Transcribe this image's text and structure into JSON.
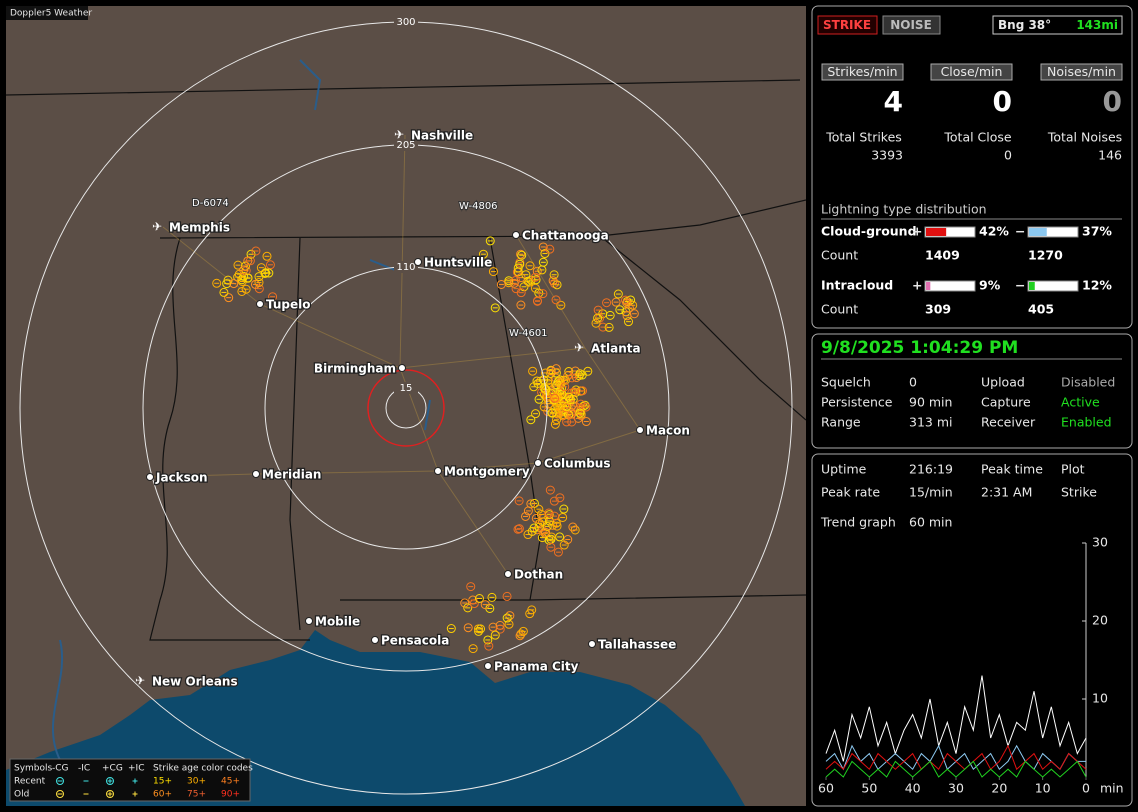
{
  "window_title": "Doppler5 Weather",
  "map": {
    "range_rings": [
      "300",
      "205",
      "110",
      "15"
    ],
    "cities": [
      "Nashville",
      "Memphis",
      "Chattanooga",
      "Huntsville",
      "Tupelo",
      "Atlanta",
      "Birmingham",
      "Macon",
      "Columbus",
      "Jackson",
      "Meridian",
      "Montgomery",
      "Dothan",
      "Mobile",
      "Pensacola",
      "Tallahassee",
      "Panama City",
      "New Orleans"
    ],
    "stations": [
      "D-6074",
      "W-4806",
      "W-4601"
    ]
  },
  "legend": {
    "headers": [
      "Symbols",
      "-CG",
      "-IC",
      "+CG",
      "+IC"
    ],
    "age_title": "Strike age color codes",
    "rows": [
      {
        "label": "Recent",
        "ages": [
          "15+",
          "30+",
          "45+"
        ]
      },
      {
        "label": "Old",
        "ages": [
          "60+",
          "75+",
          "90+"
        ]
      }
    ]
  },
  "strike": {
    "buttons": [
      "STRIKE",
      "NOISE"
    ],
    "bearing": "Bng 38°",
    "distance": "143mi",
    "rates": [
      {
        "label": "Strikes/min",
        "value": 4,
        "total_label": "Total Strikes",
        "total": 3393
      },
      {
        "label": "Close/min",
        "value": 0,
        "total_label": "Total Close",
        "total": 0
      },
      {
        "label": "Noises/min",
        "value": 0,
        "total_label": "Total Noises",
        "total": 146
      }
    ],
    "distribution": {
      "title": "Lightning type distribution",
      "count_label": "Count",
      "rows": [
        {
          "name": "Cloud-ground",
          "positive": {
            "sign": "+",
            "percent": 42,
            "percent_label": "42%",
            "count": 1409,
            "color": "#e01010"
          },
          "negative": {
            "sign": "−",
            "percent": 37,
            "percent_label": "37%",
            "count": 1270,
            "color": "#8cc8f0"
          }
        },
        {
          "name": "Intracloud",
          "positive": {
            "sign": "+",
            "percent": 9,
            "percent_label": "9%",
            "count": 309,
            "color": "#e070b0"
          },
          "negative": {
            "sign": "−",
            "percent": 12,
            "percent_label": "12%",
            "count": 405,
            "color": "#20d020"
          }
        }
      ]
    }
  },
  "status": {
    "datetime": "9/8/2025 1:04:29 PM",
    "settings": [
      [
        "Squelch",
        "0",
        "Upload",
        "Disabled"
      ],
      [
        "Persistence",
        "90 min",
        "Capture",
        "Active"
      ],
      [
        "Range",
        "313 mi",
        "Receiver",
        "Enabled"
      ]
    ]
  },
  "stats": {
    "rows": [
      [
        "Uptime",
        "216:19",
        "Peak time",
        "Plot"
      ],
      [
        "Peak rate",
        "15/min",
        "2:31 AM",
        "Strike"
      ]
    ],
    "trend_label": "Trend graph",
    "trend_window": "60 min",
    "chart_data": {
      "type": "line",
      "x_unit": "min",
      "x": [
        60,
        58,
        56,
        54,
        52,
        50,
        48,
        46,
        44,
        42,
        40,
        38,
        36,
        34,
        32,
        30,
        28,
        26,
        24,
        22,
        20,
        18,
        16,
        14,
        12,
        10,
        8,
        6,
        4,
        2,
        0
      ],
      "xlim": [
        60,
        0
      ],
      "xticks": [
        60,
        50,
        40,
        30,
        20,
        10,
        0
      ],
      "ylim": [
        0,
        30
      ],
      "yticks": [
        10,
        20,
        30
      ],
      "series": [
        {
          "color": "#ffffff",
          "values": [
            3,
            6,
            2,
            8,
            5,
            9,
            4,
            7,
            3,
            6,
            8,
            5,
            10,
            4,
            7,
            3,
            9,
            6,
            13,
            5,
            8,
            4,
            7,
            6,
            11,
            5,
            9,
            4,
            7,
            3,
            5
          ]
        },
        {
          "color": "#8cc8f0",
          "values": [
            2,
            3,
            1,
            4,
            2,
            3,
            1,
            2,
            3,
            2,
            1,
            3,
            2,
            4,
            1,
            2,
            3,
            1,
            2,
            3,
            1,
            2,
            4,
            2,
            1,
            3,
            2,
            1,
            3,
            2,
            2
          ]
        },
        {
          "color": "#e01010",
          "values": [
            1,
            2,
            1,
            3,
            2,
            1,
            3,
            2,
            1,
            2,
            3,
            1,
            2,
            1,
            3,
            2,
            1,
            2,
            3,
            1,
            2,
            4,
            1,
            2,
            3,
            1,
            2,
            1,
            3,
            2,
            1
          ]
        },
        {
          "color": "#20d020",
          "values": [
            0,
            1,
            0,
            2,
            1,
            0,
            1,
            0,
            2,
            1,
            0,
            1,
            2,
            0,
            1,
            0,
            1,
            2,
            0,
            1,
            0,
            1,
            0,
            2,
            1,
            0,
            1,
            0,
            1,
            2,
            0
          ]
        }
      ]
    }
  }
}
